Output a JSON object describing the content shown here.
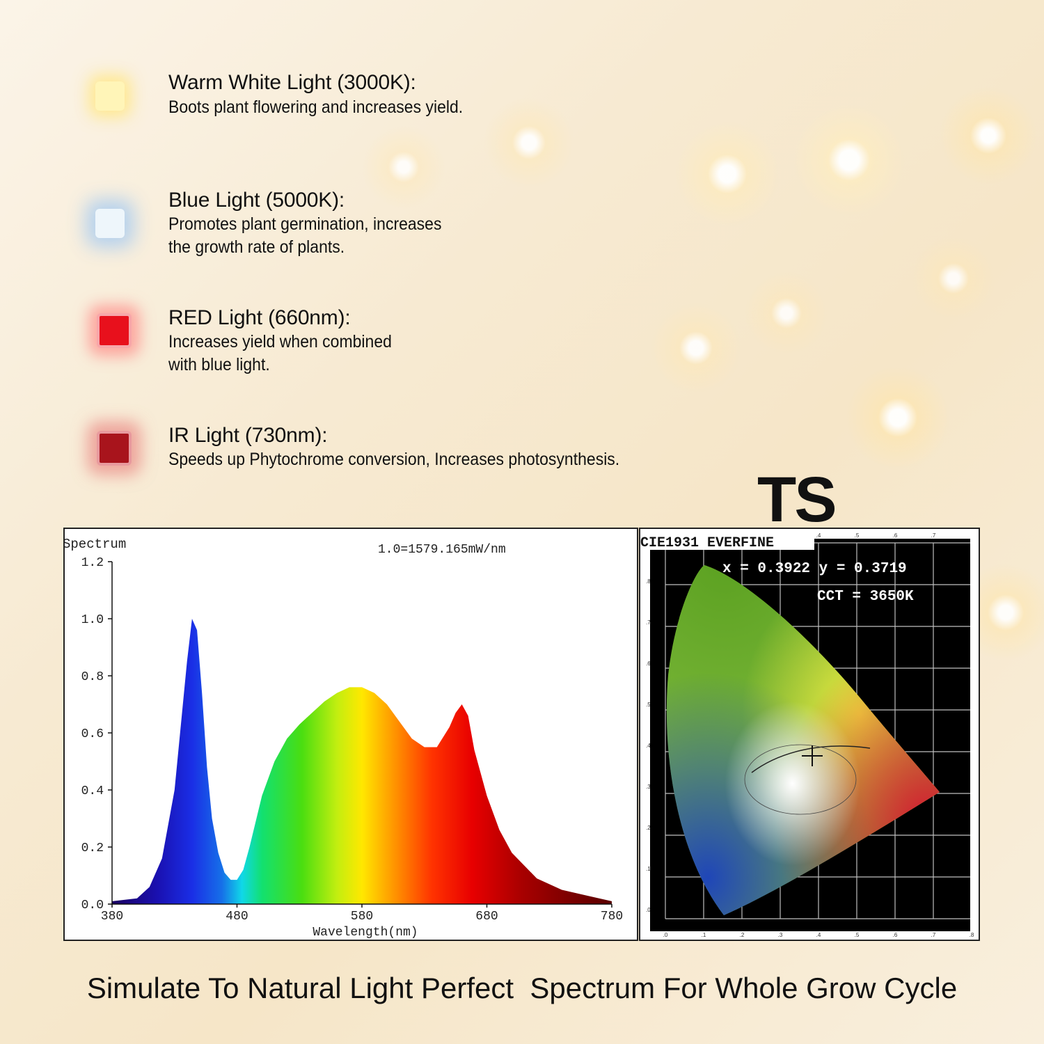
{
  "features": [
    {
      "title": "Warm White Light (3000K):",
      "desc": "Boots plant flowering and increases yield.",
      "color": "#fff3b0"
    },
    {
      "title": "Blue Light (5000K):",
      "desc": "Promotes plant germination, increases\nthe growth rate of plants.",
      "color": "#eef6fb"
    },
    {
      "title": "RED Light (660nm):",
      "desc": "Increases yield when combined\nwith blue light.",
      "color": "#e8101c"
    },
    {
      "title": "IR Light (730nm):",
      "desc": "Speeds up  Phytochrome conversion, Increases photosynthesis.",
      "color": "#a8141c"
    }
  ],
  "brand": "TS",
  "spectrum": {
    "label": "Spectrum",
    "note": "1.0=1579.165mW/nm"
  },
  "chart_data": {
    "type": "area",
    "xlabel": "Wavelength(nm)",
    "ylabel": "",
    "xlim": [
      380,
      780
    ],
    "ylim": [
      0,
      1.2
    ],
    "x_ticks": [
      "380",
      "480",
      "580",
      "680",
      "780"
    ],
    "y_ticks": [
      "0.0",
      "0.2",
      "0.4",
      "0.6",
      "0.8",
      "1.0",
      "1.2"
    ],
    "x": [
      380,
      400,
      410,
      420,
      430,
      440,
      444,
      448,
      452,
      456,
      460,
      465,
      470,
      475,
      480,
      485,
      490,
      500,
      510,
      520,
      530,
      540,
      550,
      560,
      570,
      580,
      590,
      600,
      610,
      620,
      630,
      640,
      650,
      655,
      660,
      665,
      670,
      680,
      690,
      700,
      720,
      740,
      760,
      780
    ],
    "y": [
      0.01,
      0.02,
      0.06,
      0.16,
      0.4,
      0.85,
      1.0,
      0.96,
      0.74,
      0.48,
      0.3,
      0.18,
      0.11,
      0.085,
      0.085,
      0.12,
      0.2,
      0.38,
      0.5,
      0.58,
      0.63,
      0.67,
      0.71,
      0.74,
      0.76,
      0.76,
      0.74,
      0.7,
      0.64,
      0.58,
      0.55,
      0.55,
      0.62,
      0.67,
      0.7,
      0.66,
      0.54,
      0.38,
      0.26,
      0.18,
      0.09,
      0.05,
      0.03,
      0.01
    ]
  },
  "cie": {
    "title": "CIE1931 EVERFINE",
    "xy": "x = 0.3922 y = 0.3719",
    "cct": "CCT = 3650K",
    "x_value": 0.3922,
    "y_value": 0.3719,
    "top_ticks": [
      ".4",
      ".5",
      ".6",
      ".7"
    ],
    "x_ticks": [
      ".0",
      ".1",
      ".2",
      ".3",
      ".4",
      ".5",
      ".6",
      ".7",
      ".8"
    ],
    "y_ticks": [
      ".8",
      ".7",
      ".6",
      ".5",
      ".4",
      ".3",
      ".2",
      ".1",
      ".0"
    ]
  },
  "footer": "Simulate To Natural Light Perfect  Spectrum For Whole Grow Cycle"
}
